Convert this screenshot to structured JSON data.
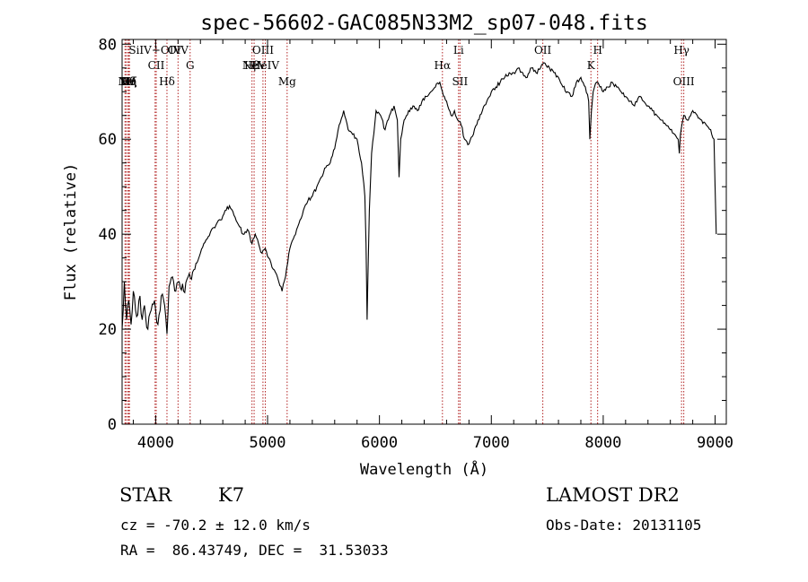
{
  "chart_data": {
    "type": "line",
    "title": "spec-56602-GAC085N33M2_sp07-048.fits",
    "xlabel": "Wavelength (Å)",
    "ylabel": "Flux (relative)",
    "xlim": [
      3700,
      9100
    ],
    "ylim": [
      0,
      81
    ],
    "x_ticks": [
      4000,
      5000,
      6000,
      7000,
      8000,
      9000
    ],
    "y_ticks": [
      0,
      20,
      40,
      60,
      80
    ],
    "grid": false,
    "line_color": "#000000",
    "marker_color": "#b22222",
    "series": [
      {
        "x": [
          3700,
          3720,
          3740,
          3760,
          3780,
          3800,
          3820,
          3840,
          3860,
          3880,
          3900,
          3930,
          3960,
          3990,
          4020,
          4050,
          4080,
          4101,
          4120,
          4150,
          4180,
          4210,
          4250,
          4290,
          4330,
          4370,
          4400,
          4430,
          4460,
          4500,
          4540,
          4580,
          4620,
          4660,
          4700,
          4740,
          4780,
          4820,
          4861,
          4890,
          4920,
          4950,
          4980,
          5010,
          5040,
          5070,
          5100,
          5130,
          5160,
          5180,
          5200,
          5230,
          5260,
          5290,
          5320,
          5360,
          5400,
          5440,
          5480,
          5520,
          5560,
          5600,
          5640,
          5680,
          5720,
          5760,
          5800,
          5840,
          5870,
          5880,
          5890,
          5896,
          5910,
          5930,
          5970,
          6010,
          6050,
          6090,
          6130,
          6160,
          6175,
          6190,
          6220,
          6260,
          6300,
          6340,
          6380,
          6420,
          6460,
          6500,
          6540,
          6563,
          6580,
          6610,
          6640,
          6670,
          6700,
          6730,
          6760,
          6800,
          6840,
          6880,
          6920,
          6960,
          7000,
          7040,
          7080,
          7120,
          7160,
          7200,
          7240,
          7280,
          7320,
          7360,
          7400,
          7440,
          7480,
          7520,
          7560,
          7600,
          7640,
          7680,
          7720,
          7760,
          7800,
          7840,
          7870,
          7880,
          7895,
          7910,
          7940,
          7970,
          8000,
          8040,
          8080,
          8120,
          8160,
          8200,
          8240,
          8280,
          8320,
          8360,
          8400,
          8440,
          8480,
          8520,
          8560,
          8600,
          8640,
          8670,
          8680,
          8690,
          8720,
          8760,
          8800,
          8840,
          8880,
          8920,
          8960,
          8990,
          9000,
          9010
        ],
        "y": [
          20,
          30,
          22,
          26,
          21,
          28,
          24,
          23,
          27,
          22,
          25,
          20,
          24,
          26,
          21,
          27,
          25,
          19,
          29,
          31,
          28,
          30,
          28,
          31,
          32,
          34,
          36,
          38,
          39,
          41,
          42,
          43,
          45,
          46,
          44,
          42,
          40,
          41,
          38,
          40,
          38,
          36,
          37,
          35,
          33,
          32,
          30,
          28,
          31,
          34,
          37,
          39,
          41,
          43,
          45,
          47,
          48,
          50,
          52,
          54,
          55,
          58,
          63,
          66,
          62,
          61,
          60,
          55,
          48,
          38,
          22,
          30,
          45,
          57,
          66,
          65,
          62,
          65,
          67,
          64,
          52,
          60,
          64,
          66,
          67,
          66,
          68,
          69,
          70,
          71,
          72,
          70,
          69,
          67,
          65,
          66,
          64,
          63,
          60,
          59,
          61,
          64,
          66,
          68,
          70,
          71,
          72,
          73,
          74,
          74,
          75,
          74,
          73,
          75,
          74,
          75,
          76,
          75,
          74,
          73,
          71,
          70,
          69,
          72,
          73,
          71,
          68,
          60,
          66,
          70,
          72,
          71,
          70,
          71,
          72,
          71,
          70,
          69,
          68,
          67,
          69,
          68,
          67,
          66,
          65,
          64,
          63,
          62,
          61,
          60,
          57,
          61,
          65,
          64,
          66,
          65,
          64,
          63,
          62,
          60,
          50,
          40
        ]
      }
    ],
    "lines": [
      {
        "label": "A",
        "x": 3726,
        "label_row": 2
      },
      {
        "label": "Ne",
        "x": 3735,
        "label_row": 2
      },
      {
        "label": "Hθ",
        "x": 3751,
        "label_row": 2
      },
      {
        "label": "Hη",
        "x": 3758,
        "label_row": 2
      },
      {
        "label": "Hξ",
        "x": 3766,
        "label_row": 2
      },
      {
        "label": "SiIV+OIV",
        "x": 3995,
        "label_row": 0
      },
      {
        "label": "CII",
        "x": 4005,
        "label_row": 1
      },
      {
        "label": "Hδ",
        "x": 4101,
        "label_row": 2
      },
      {
        "label": "OIV",
        "x": 4200,
        "label_row": 0
      },
      {
        "label": "G",
        "x": 4308,
        "label_row": 1
      },
      {
        "label": "Hβ",
        "x": 4861,
        "label_row": 1
      },
      {
        "label": "NeV",
        "x": 4880,
        "label_row": 1
      },
      {
        "label": "OIII",
        "x": 4959,
        "label_row": 0
      },
      {
        "label": "HeIV",
        "x": 4980,
        "label_row": 1
      },
      {
        "label": "Mg",
        "x": 5175,
        "label_row": 2
      },
      {
        "label": "Hα",
        "x": 6563,
        "label_row": 1
      },
      {
        "label": "Li",
        "x": 6707,
        "label_row": 0
      },
      {
        "label": "SII",
        "x": 6720,
        "label_row": 2
      },
      {
        "label": "OII",
        "x": 7460,
        "label_row": 0
      },
      {
        "label": "K",
        "x": 7890,
        "label_row": 1
      },
      {
        "label": "H",
        "x": 7950,
        "label_row": 0
      },
      {
        "label": "Hγ",
        "x": 8700,
        "label_row": 0
      },
      {
        "label": "OIII",
        "x": 8720,
        "label_row": 2
      }
    ]
  },
  "info": {
    "object_class": "STAR",
    "subclass": "K7",
    "survey": "LAMOST DR2",
    "redshift": "cz = -70.2 ± 12.0 km/s",
    "obs_date": "Obs-Date: 20131105",
    "coords": "RA =  86.43749, DEC =  31.53033"
  }
}
